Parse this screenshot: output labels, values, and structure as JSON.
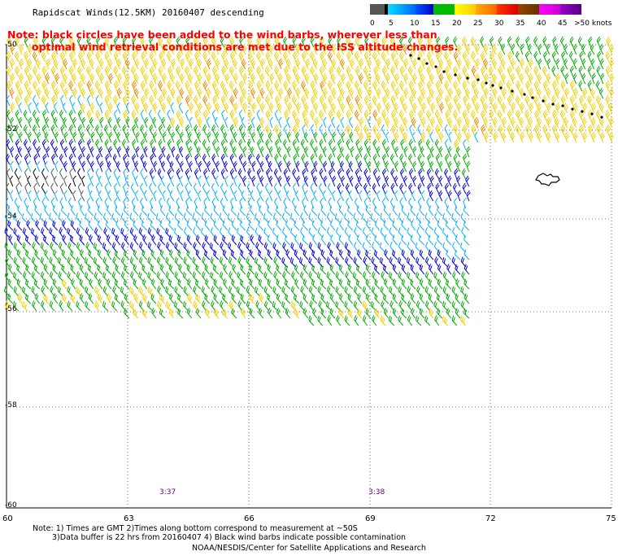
{
  "title": "Rapidscat Winds(12.5KM) 20160407 descending",
  "note": {
    "line1": "Note: black circles have been added to the wind barbs, wherever less than",
    "line2": "optimal wind retrieval conditions are met due to the ISS altitude changes."
  },
  "legend": {
    "ticks": [
      "0",
      "5",
      "10",
      "15",
      "20",
      "25",
      "30",
      "35",
      "40",
      "45",
      ">50 knots"
    ],
    "colors": [
      "#555555",
      "#000000",
      "#00aaff",
      "#0000ff",
      "#00bb00",
      "#ffdd00",
      "#ff8800",
      "#ff0000",
      "#8b4513",
      "#ff00ff",
      "#7700aa"
    ],
    "units": "knots"
  },
  "map": {
    "latitudes": [
      "-50",
      "-52",
      "-54",
      "-56",
      "-58",
      "-60"
    ],
    "longitudes": [
      "60",
      "63",
      "66",
      "69",
      "72",
      "75"
    ],
    "times": [
      "3:37",
      "3:38"
    ],
    "colors": {
      "calm": "#555555",
      "light": "#000000",
      "cyan": "#00b0ff",
      "blue": "#0000dd",
      "green": "#00aa00",
      "yellow": "#f0d000",
      "orange": "#ee8800",
      "flag": "#000000"
    }
  },
  "footnotes": {
    "line1": "Note: 1) Times are GMT 2)Times along bottom correspond to measurement at ~50S",
    "line2": "3)Data buffer is 22 hrs from 20160407 4) Black wind barbs indicate possible contamination"
  },
  "credit": "NOAA/NESDIS/Center for Satellite Applications and Research"
}
